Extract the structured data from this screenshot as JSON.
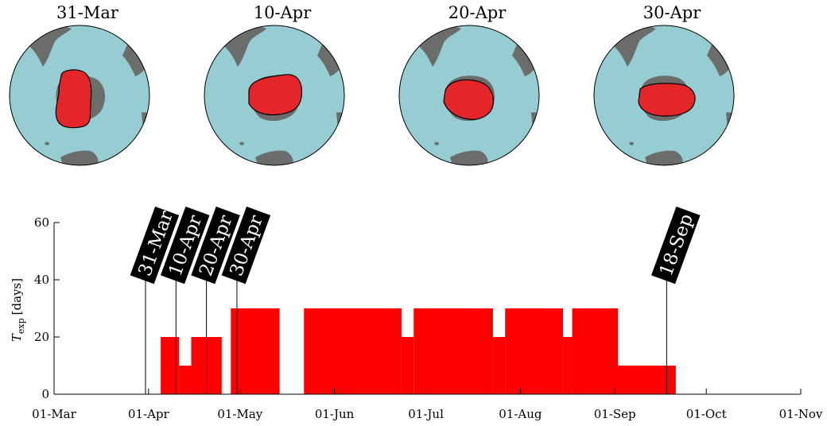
{
  "maps": [
    {
      "title": "31-Mar"
    },
    {
      "title": "10-Apr"
    },
    {
      "title": "20-Apr"
    },
    {
      "title": "30-Apr"
    }
  ],
  "colors": {
    "ocean": "#96cdd2",
    "land": "#6a6d6a",
    "blob": "#e4252a",
    "bar": "#ff0000",
    "flag": "#000000"
  },
  "chart_data": {
    "type": "bar",
    "ylabel": "T_exp [days]",
    "ylabel_main": "T",
    "ylabel_sub": "exp",
    "ylabel_unit": "[days]",
    "ylim": [
      0,
      60
    ],
    "yticks": [
      0,
      20,
      40,
      60
    ],
    "xlim": [
      "2020-03-01",
      "2020-11-01"
    ],
    "xtick_labels": [
      "01-Mar",
      "01-Apr",
      "01-May",
      "01-Jun",
      "01-Jul",
      "01-Aug",
      "01-Sep",
      "01-Oct",
      "01-Nov"
    ],
    "xtick_dates": [
      "2020-03-01",
      "2020-04-01",
      "2020-05-01",
      "2020-06-01",
      "2020-07-01",
      "2020-08-01",
      "2020-09-01",
      "2020-10-01",
      "2020-11-01"
    ],
    "bars": [
      {
        "start": "2020-04-05",
        "end": "2020-04-11",
        "value": 20
      },
      {
        "start": "2020-04-11",
        "end": "2020-04-15",
        "value": 10
      },
      {
        "start": "2020-04-15",
        "end": "2020-04-25",
        "value": 20
      },
      {
        "start": "2020-04-28",
        "end": "2020-05-14",
        "value": 30
      },
      {
        "start": "2020-05-22",
        "end": "2020-06-23",
        "value": 30
      },
      {
        "start": "2020-06-23",
        "end": "2020-06-27",
        "value": 20
      },
      {
        "start": "2020-06-27",
        "end": "2020-07-23",
        "value": 30
      },
      {
        "start": "2020-07-23",
        "end": "2020-07-27",
        "value": 20
      },
      {
        "start": "2020-07-27",
        "end": "2020-08-15",
        "value": 30
      },
      {
        "start": "2020-08-15",
        "end": "2020-08-18",
        "value": 20
      },
      {
        "start": "2020-08-18",
        "end": "2020-09-02",
        "value": 30
      },
      {
        "start": "2020-09-02",
        "end": "2020-09-21",
        "value": 10
      }
    ],
    "markers": [
      {
        "label": "31-Mar",
        "date": "2020-03-31"
      },
      {
        "label": "10-Apr",
        "date": "2020-04-10"
      },
      {
        "label": "20-Apr",
        "date": "2020-04-20"
      },
      {
        "label": "30-Apr",
        "date": "2020-04-30"
      },
      {
        "label": "18-Sep",
        "date": "2020-09-18"
      }
    ],
    "grid": false
  }
}
